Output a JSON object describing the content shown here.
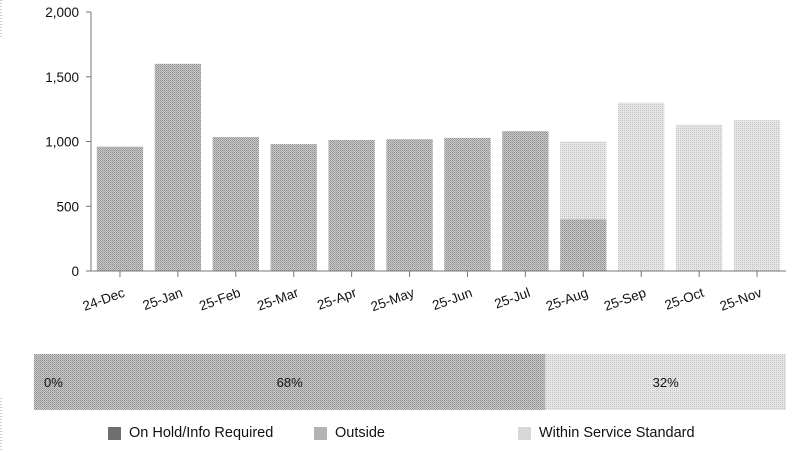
{
  "chart_data": [
    {
      "type": "bar",
      "stacked": true,
      "categories": [
        "24-Dec",
        "25-Jan",
        "25-Feb",
        "25-Mar",
        "25-Apr",
        "25-May",
        "25-Jun",
        "25-Jul",
        "25-Aug",
        "25-Sep",
        "25-Oct",
        "25-Nov"
      ],
      "series": [
        {
          "name": "On Hold/Info Required",
          "color": "#6f6f6f",
          "values": [
            0,
            0,
            0,
            0,
            0,
            0,
            0,
            0,
            0,
            0,
            0,
            0
          ]
        },
        {
          "name": "Outside",
          "color": "#b3b3b3",
          "values": [
            960,
            1600,
            1035,
            980,
            1012,
            1018,
            1028,
            1080,
            400,
            0,
            0,
            0
          ]
        },
        {
          "name": "Within Service Standard",
          "color": "#d8d8d8",
          "values": [
            0,
            0,
            0,
            0,
            0,
            0,
            0,
            0,
            600,
            1300,
            1130,
            1165
          ]
        }
      ],
      "yticks": [
        "2,000",
        "1,500",
        "1,000",
        "500",
        "0"
      ],
      "ylim": [
        0,
        2000
      ],
      "grid": false,
      "title": "",
      "xlabel": "",
      "ylabel": ""
    },
    {
      "type": "bar",
      "orientation": "horizontal",
      "stacked": true,
      "series": [
        {
          "name": "On Hold/Info Required",
          "color": "#6f6f6f",
          "value": 0,
          "label": "0%"
        },
        {
          "name": "Outside",
          "color": "#b3b3b3",
          "value": 68,
          "label": "68%"
        },
        {
          "name": "Within Service Standard",
          "color": "#d8d8d8",
          "value": 32,
          "label": "32%"
        }
      ],
      "xlim": [
        0,
        100
      ]
    }
  ],
  "legend": {
    "position": "bottom",
    "items": [
      {
        "label": "On Hold/Info Required"
      },
      {
        "label": "Outside"
      },
      {
        "label": "Within Service Standard"
      }
    ]
  }
}
